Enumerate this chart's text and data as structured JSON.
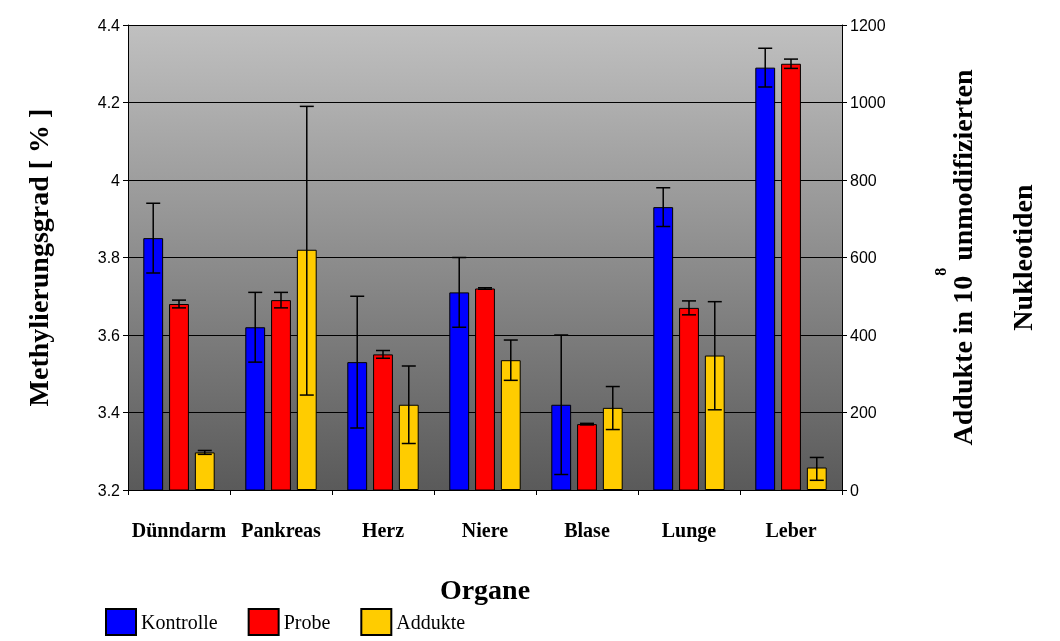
{
  "chart_data": {
    "type": "bar",
    "xlabel": "Organe",
    "ylabel": "Methylierungsgrad [ % ]",
    "y2label": "Addukte in 10$^{8}$ unmodifizierten\nNukleotiden",
    "categories": [
      "Dünndarm",
      "Pankreas",
      "Herz",
      "Niere",
      "Blase",
      "Lunge",
      "Leber"
    ],
    "series": [
      {
        "name": "Kontrolle",
        "color": "#0000ff",
        "values": [
          3.85,
          3.62,
          3.53,
          3.71,
          3.42,
          3.93,
          4.29
        ],
        "errors": [
          [
            3.76,
            3.94
          ],
          [
            3.53,
            3.71
          ],
          [
            3.36,
            3.7
          ],
          [
            3.62,
            3.8
          ],
          [
            3.24,
            3.6
          ],
          [
            3.88,
            3.98
          ],
          [
            4.24,
            4.34
          ]
        ]
      },
      {
        "name": "Probe",
        "color": "#ff0000",
        "values": [
          3.68,
          3.69,
          3.55,
          3.72,
          3.37,
          3.67,
          4.3
        ],
        "errors": [
          0.01,
          0.02,
          0.01,
          0.002,
          0.002,
          0.018,
          0.012
        ]
      },
      {
        "name": "Addukte",
        "color": "#ffcc00",
        "axis": "y2",
        "values": [
          97,
          620,
          220,
          335,
          212,
          347,
          58
        ],
        "errors": [
          [
            92,
            102
          ],
          [
            245,
            990
          ],
          [
            120,
            320
          ],
          [
            283,
            387
          ],
          [
            156,
            267
          ],
          [
            207,
            486
          ],
          [
            25,
            84
          ]
        ]
      }
    ],
    "ylim": [
      3.2,
      4.4
    ],
    "yticks": [
      3.2,
      3.4,
      3.6,
      3.8,
      4,
      4.2,
      4.4
    ],
    "y2lim": [
      0,
      1200
    ],
    "y2ticks": [
      0,
      200,
      400,
      600,
      800,
      1000,
      1200
    ],
    "grid": "y",
    "legend": "bottom left"
  }
}
